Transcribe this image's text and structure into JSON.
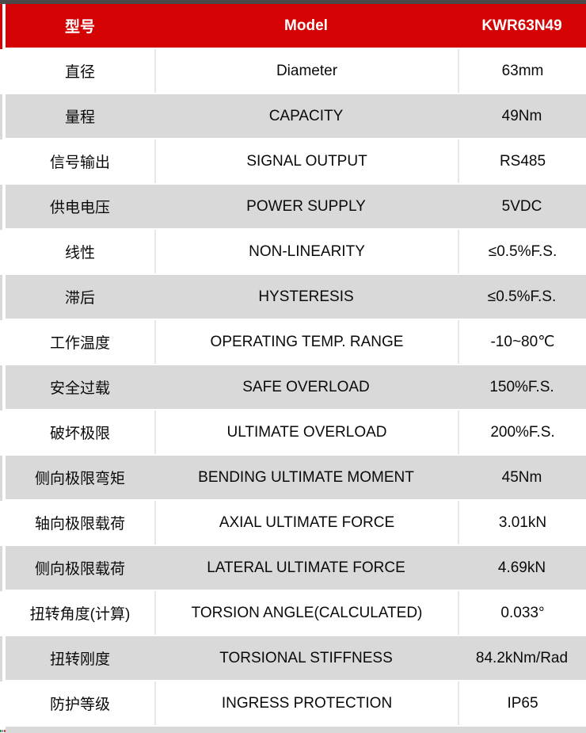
{
  "page": {
    "colors": {
      "accent_red": "#d40202",
      "row_gray": "#d9d9d9",
      "top_strip": "#4a4a4a",
      "divider": "#e7e7e7",
      "artifact_dots": [
        "#4a8f3f",
        "#3b5fcc",
        "#cc4733"
      ]
    }
  },
  "table": {
    "header": {
      "cn": "型号",
      "en": "Model",
      "value": "KWR63N49"
    },
    "rows": [
      {
        "cn": "直径",
        "en": "Diameter",
        "value": "63mm"
      },
      {
        "cn": "量程",
        "en": "CAPACITY",
        "value": "49Nm"
      },
      {
        "cn": "信号输出",
        "en": "SIGNAL OUTPUT",
        "value": "RS485"
      },
      {
        "cn": "供电电压",
        "en": "POWER SUPPLY",
        "value": "5VDC"
      },
      {
        "cn": "线性",
        "en": "NON-LINEARITY",
        "value": "≤0.5%F.S."
      },
      {
        "cn": "滞后",
        "en": "HYSTERESIS",
        "value": "≤0.5%F.S."
      },
      {
        "cn": "工作温度",
        "en": "OPERATING TEMP. RANGE",
        "value": "-10~80℃"
      },
      {
        "cn": "安全过载",
        "en": "SAFE OVERLOAD",
        "value": "150%F.S."
      },
      {
        "cn": "破坏极限",
        "en": "ULTIMATE OVERLOAD",
        "value": "200%F.S."
      },
      {
        "cn": "侧向极限弯矩",
        "en": "BENDING ULTIMATE MOMENT",
        "value": "45Nm"
      },
      {
        "cn": "轴向极限载荷",
        "en": "AXIAL ULTIMATE FORCE",
        "value": "3.01kN"
      },
      {
        "cn": "侧向极限载荷",
        "en": "LATERAL ULTIMATE FORCE",
        "value": "4.69kN"
      },
      {
        "cn": "扭转角度(计算)",
        "en": "TORSION ANGLE(CALCULATED)",
        "value": "0.033°"
      },
      {
        "cn": "扭转刚度",
        "en": "TORSIONAL STIFFNESS",
        "value": "84.2kNm/Rad"
      },
      {
        "cn": "防护等级",
        "en": "INGRESS PROTECTION",
        "value": "IP65"
      }
    ]
  }
}
